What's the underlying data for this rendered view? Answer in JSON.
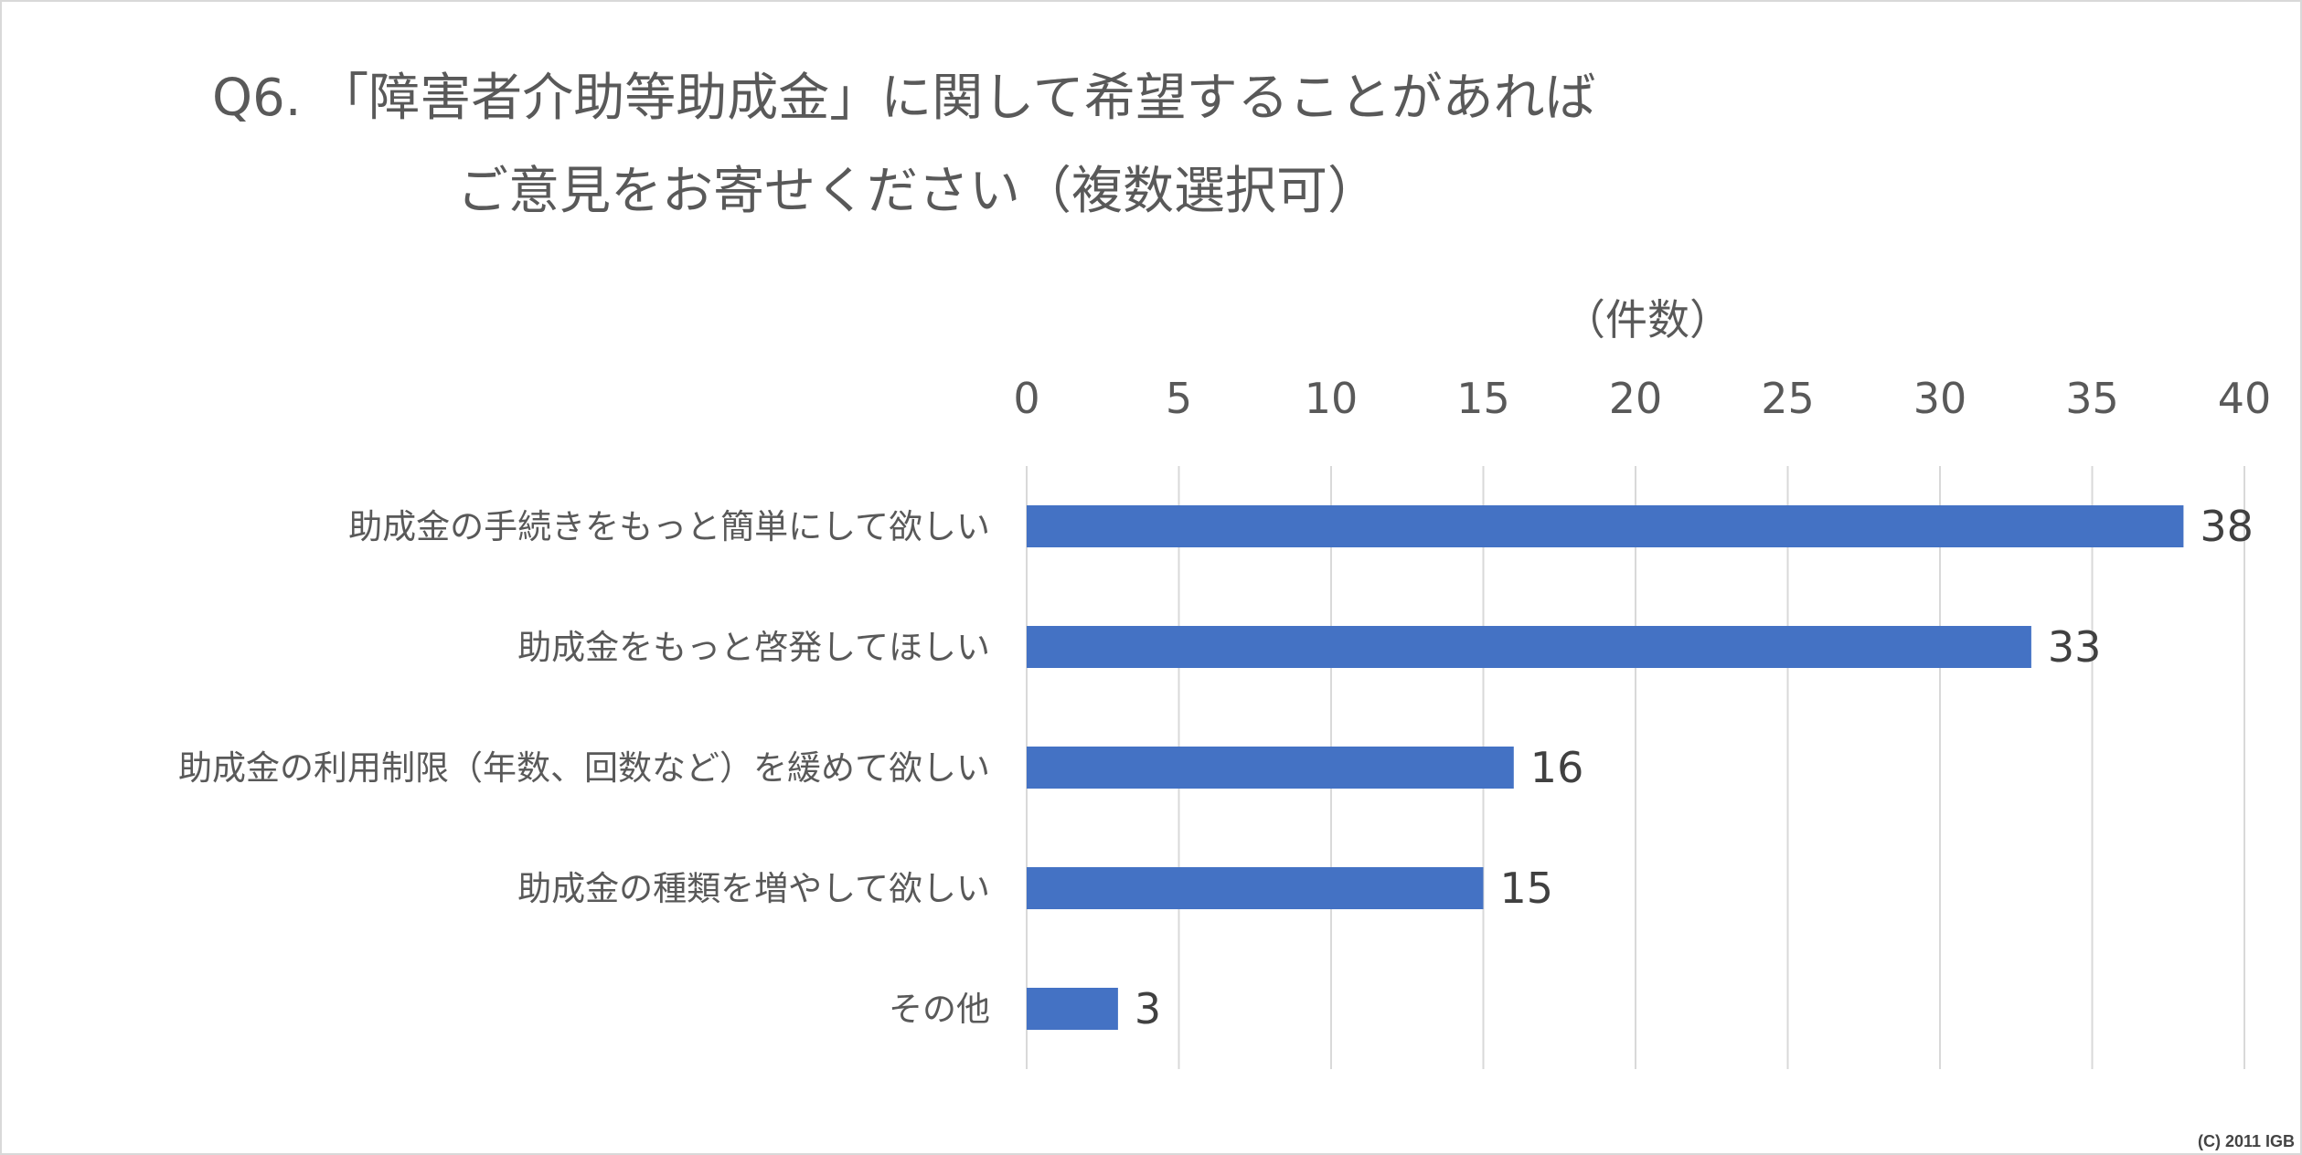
{
  "title": {
    "line1": "Q6. 「障害者介助等助成金」に関して希望することがあれば",
    "line2": "ご意見をお寄せください（複数選択可）"
  },
  "copyright": "(C) 2011 IGB",
  "chart_data": {
    "type": "bar",
    "orientation": "horizontal",
    "axis_unit": "（件数）",
    "categories": [
      "助成金の手続きをもっと簡単にして欲しい",
      "助成金をもっと啓発してほしい",
      "助成金の利用制限（年数、回数など）を緩めて欲しい",
      "助成金の種類を増やして欲しい",
      "その他"
    ],
    "values": [
      38,
      33,
      16,
      15,
      3
    ],
    "xlim": [
      0,
      40
    ],
    "ticks": [
      0,
      5,
      10,
      15,
      20,
      25,
      30,
      35,
      40
    ],
    "tick_labels": [
      "0",
      "5",
      "10",
      "15",
      "20",
      "25",
      "30",
      "35",
      "40"
    ],
    "data_labels": [
      "38",
      "33",
      "16",
      "15",
      "3"
    ],
    "grid": true,
    "axis_position": "top",
    "bar_color": "#4472C4",
    "grid_color": "#d9d9d9"
  }
}
